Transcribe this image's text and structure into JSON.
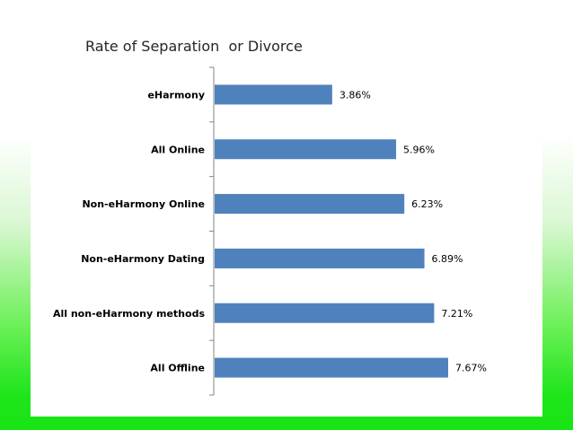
{
  "chart_data": {
    "type": "bar",
    "orientation": "horizontal",
    "title": "Rate of Separation  or Divorce",
    "categories": [
      "eHarmony",
      "All Online",
      "Non-eHarmony Online",
      "Non-eHarmony Dating",
      "All non-eHarmony methods",
      "All Offline"
    ],
    "values": [
      3.86,
      5.96,
      6.23,
      6.89,
      7.21,
      7.67
    ],
    "value_labels": [
      "3.86%",
      "5.96%",
      "6.23%",
      "6.89%",
      "7.21%",
      "7.67%"
    ],
    "xlim": [
      0,
      9
    ],
    "grid": false,
    "legend": "none",
    "bar_color": "#4f81bd"
  }
}
